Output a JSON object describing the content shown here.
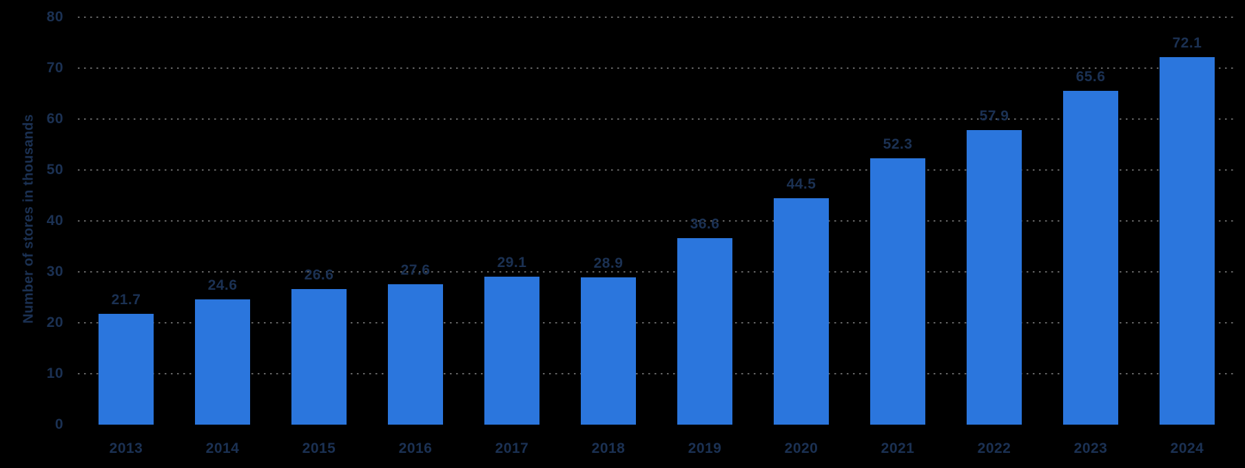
{
  "chart_data": {
    "type": "bar",
    "title": "",
    "categories": [
      "2013",
      "2014",
      "2015",
      "2016",
      "2017",
      "2018",
      "2019",
      "2020",
      "2021",
      "2022",
      "2023",
      "2024"
    ],
    "values": [
      21.7,
      24.6,
      26.6,
      27.6,
      29.1,
      28.9,
      36.6,
      44.5,
      52.3,
      57.9,
      65.6,
      72.1
    ],
    "xlabel": "",
    "ylabel": "Number of stores in thousands",
    "ylim": [
      0,
      80
    ],
    "yticks": [
      0,
      10,
      20,
      30,
      40,
      50,
      60,
      70,
      80
    ],
    "grid": "dotted-horizontal",
    "legend": "none",
    "data_labels_shown": true
  },
  "colors": {
    "background": "#000000",
    "bar_fill": "#2b76dd",
    "label_text": "#1b3153",
    "gridline": "#666666"
  }
}
